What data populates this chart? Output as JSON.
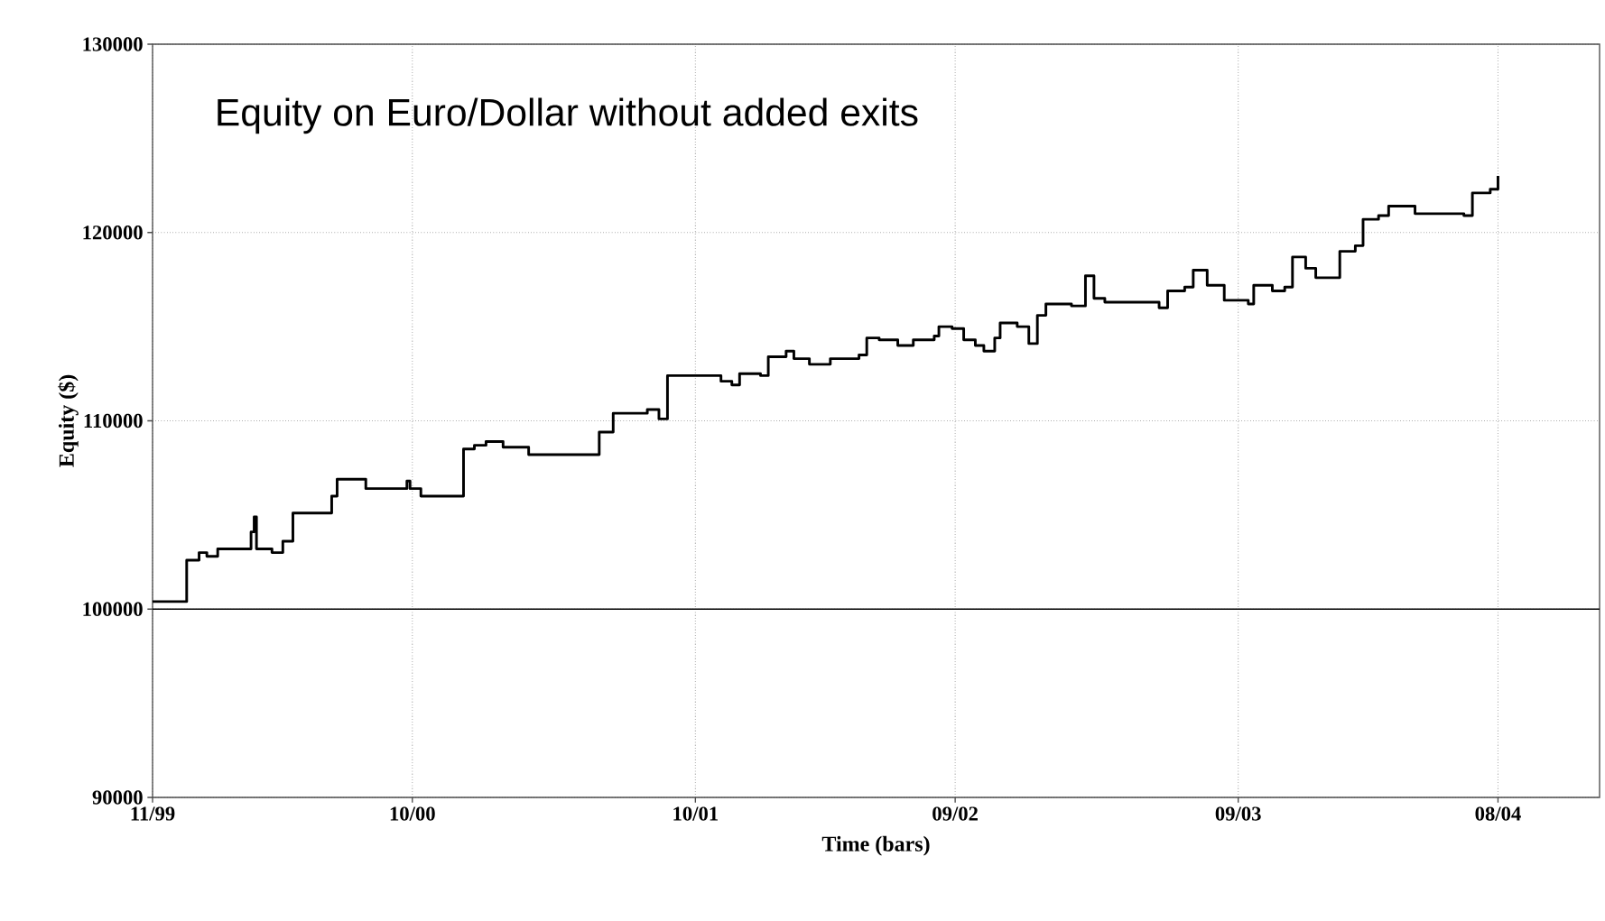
{
  "chart_data": {
    "type": "step",
    "title": "Equity on Euro/Dollar without added exits",
    "xlabel": "Time (bars)",
    "ylabel": "Equity ($)",
    "xlim": [
      "1999-11",
      "2004-12-10"
    ],
    "xticks": [
      {
        "value": "1999-11",
        "label": "11/99"
      },
      {
        "value": "2000-10",
        "label": "10/00"
      },
      {
        "value": "2001-10",
        "label": "10/01"
      },
      {
        "value": "2002-09",
        "label": "09/02"
      },
      {
        "value": "2003-09",
        "label": "09/03"
      },
      {
        "value": "2004-08",
        "label": "08/04"
      }
    ],
    "ylim": [
      90000,
      130000
    ],
    "yticks": [
      90000,
      100000,
      110000,
      120000,
      130000
    ],
    "grid": true,
    "line_style": "solid",
    "ref_lines": [
      {
        "axis": "y",
        "value": 100000,
        "color": "#000000"
      }
    ],
    "series": [
      {
        "color": "#000000",
        "x": [
          "1999-11-01",
          "1999-12-08",
          "1999-12-15",
          "1999-12-31",
          "2000-01-10",
          "2000-01-24",
          "2000-02-26",
          "2000-03-07",
          "2000-03-11",
          "2000-03-14",
          "2000-04-03",
          "2000-04-17",
          "2000-04-30",
          "2000-06-12",
          "2000-06-19",
          "2000-06-26",
          "2000-07-26",
          "2000-08-02",
          "2000-09-18",
          "2000-09-24",
          "2000-09-28",
          "2000-10-12",
          "2000-12-02",
          "2000-12-06",
          "2000-12-20",
          "2001-01-04",
          "2001-01-26",
          "2001-02-20",
          "2001-02-28",
          "2001-05-23",
          "2001-05-30",
          "2001-06-14",
          "2001-06-17",
          "2001-07-09",
          "2001-07-31",
          "2001-08-15",
          "2001-08-26",
          "2001-10-21",
          "2001-11-03",
          "2001-11-17",
          "2001-11-27",
          "2001-12-24",
          "2002-01-03",
          "2002-01-26",
          "2002-02-05",
          "2002-02-25",
          "2002-03-10",
          "2002-03-24",
          "2002-04-30",
          "2002-05-10",
          "2002-05-26",
          "2002-06-19",
          "2002-07-09",
          "2002-08-05",
          "2002-08-11",
          "2002-08-28",
          "2002-09-12",
          "2002-09-27",
          "2002-10-08",
          "2002-10-22",
          "2002-10-29",
          "2002-11-20",
          "2002-12-05",
          "2002-12-16",
          "2002-12-27",
          "2003-01-29",
          "2003-02-16",
          "2003-02-27",
          "2003-03-13",
          "2003-05-07",
          "2003-05-22",
          "2003-06-02",
          "2003-06-24",
          "2003-07-05",
          "2003-07-23",
          "2003-08-14",
          "2003-09-14",
          "2003-09-21",
          "2003-10-15",
          "2003-10-31",
          "2003-11-10",
          "2003-11-27",
          "2003-12-10",
          "2004-01-06",
          "2004-01-10",
          "2004-01-30",
          "2004-02-09",
          "2004-02-29",
          "2004-03-13",
          "2004-04-09",
          "2004-04-16",
          "2004-06-18",
          "2004-06-29",
          "2004-07-22",
          "2004-08-01"
        ],
        "values": [
          100400,
          100400,
          102600,
          103000,
          102800,
          103200,
          103200,
          104100,
          104900,
          103200,
          103000,
          103600,
          105100,
          105100,
          106000,
          106900,
          106900,
          106400,
          106400,
          106800,
          106400,
          106000,
          106000,
          108500,
          108700,
          108900,
          108600,
          108600,
          108200,
          108200,
          109400,
          109400,
          110400,
          110400,
          110600,
          110100,
          112400,
          112400,
          112100,
          111900,
          112500,
          112400,
          113400,
          113700,
          113300,
          113000,
          113000,
          113300,
          113500,
          114400,
          114300,
          114000,
          114300,
          114500,
          115000,
          114900,
          114300,
          114000,
          113700,
          114400,
          115200,
          115000,
          114100,
          115600,
          116200,
          116100,
          117700,
          116500,
          116300,
          116300,
          116000,
          116900,
          117100,
          118000,
          117200,
          116400,
          116200,
          117200,
          116900,
          117100,
          118700,
          118100,
          117600,
          117600,
          119000,
          119300,
          120700,
          120900,
          121400,
          121400,
          121000,
          120900,
          122100,
          122300,
          123000
        ]
      }
    ]
  }
}
